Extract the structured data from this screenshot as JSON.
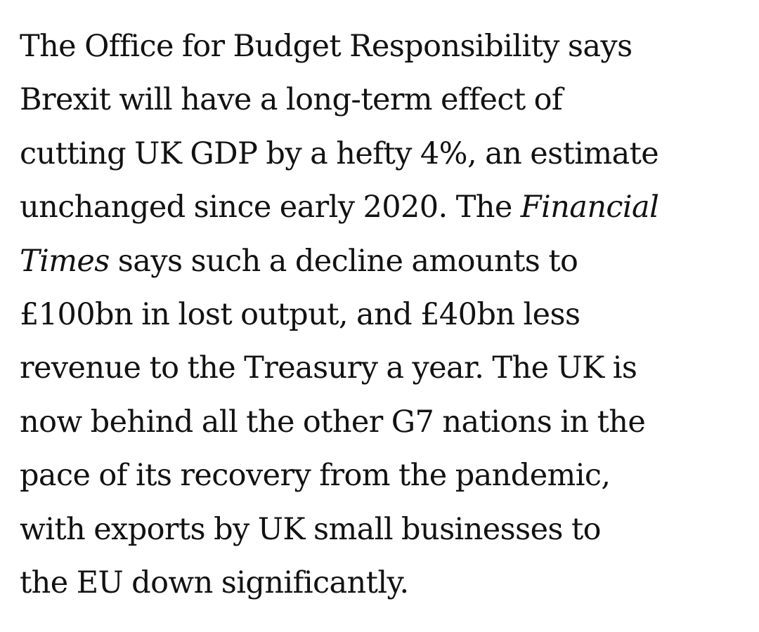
{
  "article": {
    "paragraph": {
      "line1": "The Office for Budget Responsibility says",
      "line2": "Brexit will have a long-term effect of",
      "line3": "cutting UK GDP by a hefty 4%, an estimate",
      "line4_prefix": "unchanged since early 2020. The ",
      "line4_italic": "Financial",
      "line5_italic": "Times",
      "line5_suffix": " says such a decline amounts to",
      "line6": "£100bn in lost output, and £40bn less",
      "line7": "revenue to the Treasury a year. The UK is",
      "line8": "now behind all the other G7 nations in the",
      "line9": "pace of its recovery from the pandemic,",
      "line10": "with exports by UK small businesses to",
      "line11": "the EU down significantly."
    }
  }
}
